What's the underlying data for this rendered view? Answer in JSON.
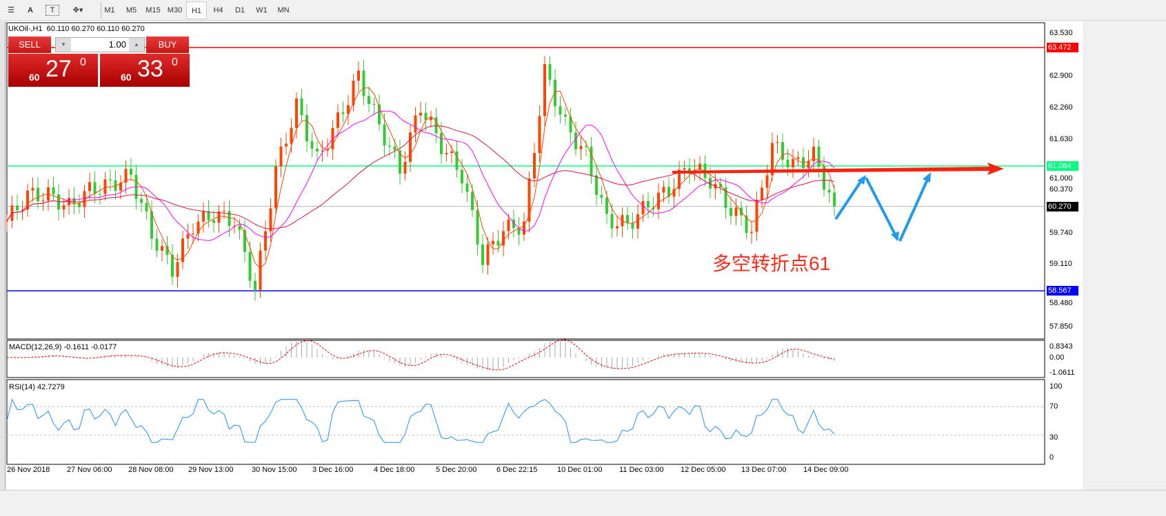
{
  "toolbar": {
    "tools": [
      "line-tools",
      "A",
      "T",
      "arrows"
    ],
    "timeframes": [
      "M1",
      "M5",
      "M15",
      "M30",
      "H1",
      "H4",
      "D1",
      "W1",
      "MN"
    ],
    "active": "H1"
  },
  "chart": {
    "symbol_line": "UKOil-,H1  60.110 60.270 60.110 60.270"
  },
  "trade": {
    "sell": "SELL",
    "buy": "BUY",
    "lot": "1.00",
    "sell_big": "60",
    "sell_main": "27",
    "sell_sup": "0",
    "buy_big": "60",
    "buy_main": "33",
    "buy_sup": "0"
  },
  "annotation": {
    "text": "多空转折点61"
  },
  "colors": {
    "up": "#ff4500",
    "down": "#32cd32",
    "resistance": "#ff0000",
    "support": "#0000ff",
    "pivot": "#00ff80",
    "arrow_red": "#ff2010",
    "arrow_blue": "#1e9bf0",
    "ma_fast": "#ff4500",
    "ma_mid": "#ff00ff",
    "ma_slow": "#dc143c"
  },
  "chart_data": [
    {
      "type": "candlestick",
      "ylim": [
        57.6,
        63.97
      ],
      "price_ticks": [
        "63.530",
        "62.900",
        "62.260",
        "61.630",
        "61.000",
        "60.370",
        "59.740",
        "59.110",
        "58.480",
        "57.850"
      ],
      "levels": [
        {
          "label": "63.472",
          "value": 63.472,
          "color": "#ff0000"
        },
        {
          "label": "61.084",
          "value": 61.084,
          "color": "#00ff80"
        },
        {
          "label": "60.270",
          "value": 60.27,
          "color": "#000000"
        },
        {
          "label": "58.567",
          "value": 58.567,
          "color": "#0000ff"
        }
      ],
      "x_labels": [
        "26 Nov 2018",
        "27 Nov 06:00",
        "28 Nov 08:00",
        "29 Nov 13:00",
        "30 Nov 15:00",
        "3 Dec 16:00",
        "4 Dec 18:00",
        "5 Dec 20:00",
        "6 Dec 22:15",
        "10 Dec 01:00",
        "11 Dec 03:00",
        "12 Dec 05:00",
        "13 Dec 07:00",
        "14 Dec 09:00"
      ],
      "closes_approx": [
        59.98,
        60.5,
        60.5,
        60.26,
        60.6,
        60.7,
        60.9,
        59.7,
        59.0,
        59.9,
        60.1,
        59.98,
        58.6,
        61.0,
        62.3,
        61.2,
        62.0,
        62.9,
        61.9,
        61.0,
        62.3,
        61.5,
        60.9,
        59.2,
        59.8,
        59.9,
        63.0,
        61.9,
        61.3,
        60.0,
        59.9,
        60.3,
        60.6,
        61.1,
        60.8,
        60.2,
        59.8,
        61.5,
        61.1,
        61.3,
        60.27
      ]
    },
    {
      "type": "line",
      "label": "MACD(12,26,9) -0.1611 -0.0177",
      "ticks": [
        "0.8343",
        "0.00",
        "-1.0611"
      ]
    },
    {
      "type": "line",
      "label": "RSI(14) 42.7279",
      "ticks": [
        "100",
        "70",
        "30",
        "0"
      ],
      "ylim": [
        0,
        100
      ]
    }
  ]
}
